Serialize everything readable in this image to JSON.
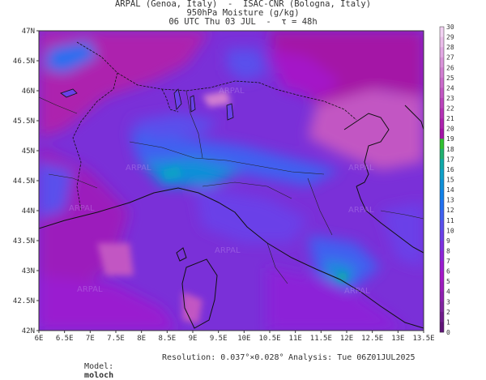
{
  "header": {
    "line1": "ARPAL (Genoa, Italy)  -  ISAC-CNR (Bologna, Italy)",
    "line2": "950hPa Moisture (g/kg)",
    "line3": "06 UTC Thu 03 JUL  -  τ = 48h"
  },
  "watermark": "ARPAL",
  "y_axis_labels": [
    "47N",
    "46.5N",
    "46N",
    "45.5N",
    "45N",
    "44.5N",
    "44N",
    "43.5N",
    "43N",
    "42.5N",
    "42N"
  ],
  "x_axis_labels": [
    "6E",
    "6.5E",
    "7E",
    "7.5E",
    "8E",
    "8.5E",
    "9E",
    "9.5E",
    "10E",
    "10.5E",
    "11E",
    "11.5E",
    "12E",
    "12.5E",
    "13E",
    "13.5E"
  ],
  "colorbar": {
    "labels": [
      "30",
      "29",
      "28",
      "27",
      "26",
      "25",
      "24",
      "23",
      "22",
      "21",
      "20",
      "19",
      "18",
      "17",
      "16",
      "15",
      "14",
      "13",
      "12",
      "11",
      "10",
      "9",
      "8",
      "7",
      "6",
      "5",
      "4",
      "3",
      "2",
      "1",
      "0"
    ],
    "colors": [
      "#f2d2f2",
      "#eabde9",
      "#e2a8e3",
      "#d993d9",
      "#d17ed1",
      "#ca6bcb",
      "#c257c3",
      "#bb44bc",
      "#b432b5",
      "#ad22ae",
      "#a412a6",
      "#30c030",
      "#20b070",
      "#10a8a8",
      "#10a0c8",
      "#1090d8",
      "#1080e8",
      "#2070f0",
      "#4060f0",
      "#5a50ec",
      "#6a40e8",
      "#7c30e0",
      "#8c24d8",
      "#9a1cd0",
      "#a418c8",
      "#9c1cbc",
      "#8e20b0",
      "#8024a0",
      "#701c8c",
      "#601478"
    ]
  },
  "footer": {
    "model_label": "Model:",
    "model_value": "moloch",
    "resolution": "Resolution: 0.037°×0.028°",
    "analysis": "Analysis: Tue 06Z01JUL2025"
  }
}
